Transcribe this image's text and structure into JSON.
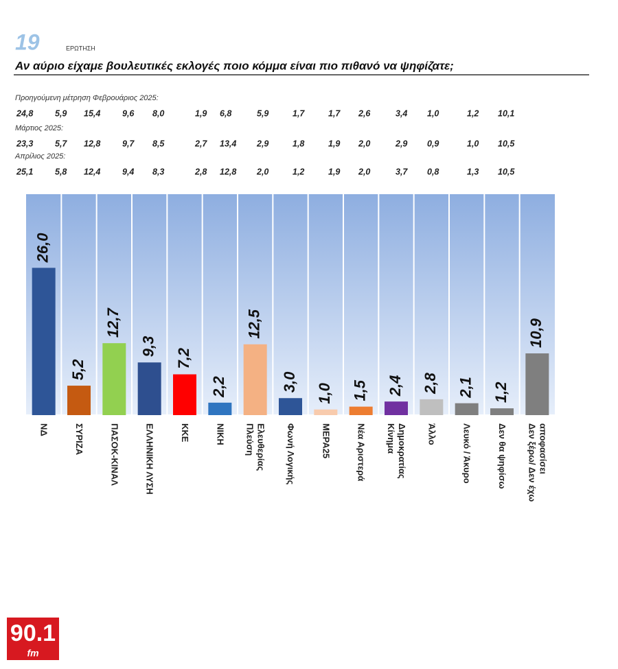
{
  "header": {
    "number": "19",
    "label": "ΕΡΩΤΗΣΗ"
  },
  "logo": {
    "text": "90.1",
    "sub": "fm"
  },
  "chart_data": {
    "type": "bar",
    "title": "Αν αύριο είχαμε βουλευτικές εκλογές ποιο κόμμα είναι πιο πιθανό να ψηφίζατε;",
    "previous_measurements": [
      {
        "label": "Προηγούμενη μέτρηση Φεβρουάριος 2025:",
        "values": [
          "24,8",
          "5,9",
          "15,4",
          "9,6",
          "8,0",
          "1,9",
          "6,8",
          "5,9",
          "1,7",
          "1,7",
          "2,6",
          "3,4",
          "1,0",
          "1,2",
          "10,1"
        ]
      },
      {
        "label": "Μάρτιος 2025:",
        "values": [
          "23,3",
          "5,7",
          "12,8",
          "9,7",
          "8,5",
          "2,7",
          "13,4",
          "2,9",
          "1,8",
          "1,9",
          "2,0",
          "2,9",
          "0,9",
          "1,0",
          "10,5"
        ]
      },
      {
        "label": "Απρίλιος 2025:",
        "values": [
          "25,1",
          "5,8",
          "12,4",
          "9,4",
          "8,3",
          "2,8",
          "12,8",
          "2,0",
          "1,2",
          "1,9",
          "2,0",
          "3,7",
          "0,8",
          "1,3",
          "10,5"
        ]
      }
    ],
    "categories": [
      "ΝΔ",
      "ΣΥΡΙΖΑ",
      "ΠΑΣΟΚ-ΚΙΝΑΛ",
      "ΕΛΛΗΝΙΚΗ ΛΥΣΗ",
      "ΚΚΕ",
      "ΝΙΚΗ",
      "Πλεύση\nΕλευθερίας",
      "Φωνή Λογικής",
      "ΜΕΡΑ25",
      "Νέα Αριστερά",
      "Κίνημα\nΔημοκρατίας",
      "Άλλο",
      "Λευκό / Άκυρο",
      "Δεν θα ψηφίσω",
      "Δεν ξέρω/ Δεν έχω\nαποφασίσει"
    ],
    "values": [
      26.0,
      5.2,
      12.7,
      9.3,
      7.2,
      2.2,
      12.5,
      3.0,
      1.0,
      1.5,
      2.4,
      2.8,
      2.1,
      1.2,
      10.9
    ],
    "value_labels": [
      "26,0",
      "5,2",
      "12,7",
      "9,3",
      "7,2",
      "2,2",
      "12,5",
      "3,0",
      "1,0",
      "1,5",
      "2,4",
      "2,8",
      "2,1",
      "1,2",
      "10,9"
    ],
    "colors": [
      "#2e5597",
      "#c55a11",
      "#92d050",
      "#2e4f8f",
      "#ff0000",
      "#2f75c0",
      "#f4b183",
      "#2e5597",
      "#f8cbad",
      "#ed7d31",
      "#7030a0",
      "#bfbfbf",
      "#7f7f7f",
      "#7f7f7f",
      "#7f7f7f"
    ],
    "ylim": [
      0,
      39
    ]
  }
}
